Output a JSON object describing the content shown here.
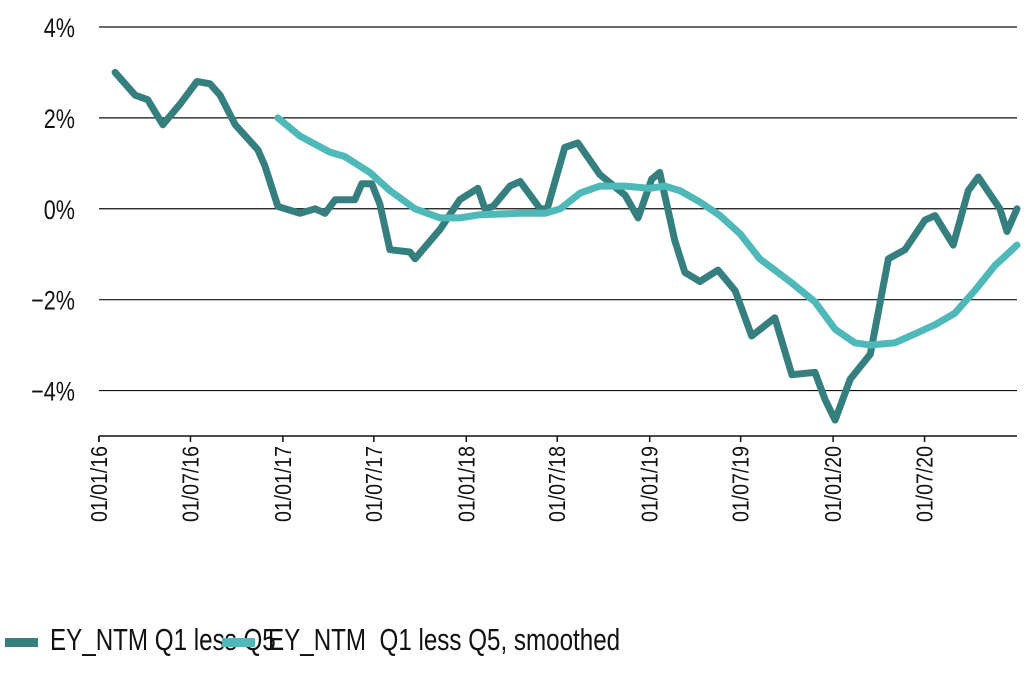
{
  "chart_data": {
    "type": "line",
    "title": "",
    "xlabel": "",
    "ylabel": "",
    "xlim": [
      "2016-01-01",
      "2021-01-01"
    ],
    "ylim": [
      -5,
      4
    ],
    "y_ticks": [
      4,
      2,
      0,
      -2,
      -4
    ],
    "y_tick_labels": [
      "4%",
      "2%",
      "0%",
      "−2%",
      "−4%"
    ],
    "x_ticks": [
      "2016-01-01",
      "2016-07-01",
      "2017-01-01",
      "2017-07-01",
      "2018-01-01",
      "2018-07-01",
      "2019-01-01",
      "2019-07-01",
      "2020-01-01",
      "2020-07-01"
    ],
    "x_tick_labels": [
      "01/01/16",
      "01/07/16",
      "01/01/17",
      "01/07/17",
      "01/01/18",
      "01/07/18",
      "01/01/19",
      "01/07/19",
      "01/01/20",
      "01/07/20"
    ],
    "grid": "horizontal",
    "legend_position": "bottom",
    "series": [
      {
        "name": "EY_NTM Q1 less Q5",
        "color": "#35807f",
        "points": [
          [
            "2016-02-02",
            3.0
          ],
          [
            "2016-03-13",
            2.5
          ],
          [
            "2016-04-07",
            2.4
          ],
          [
            "2016-05-07",
            1.85
          ],
          [
            "2016-06-10",
            2.3
          ],
          [
            "2016-07-14",
            2.8
          ],
          [
            "2016-08-09",
            2.75
          ],
          [
            "2016-08-29",
            2.5
          ],
          [
            "2016-09-28",
            1.85
          ],
          [
            "2016-11-12",
            1.3
          ],
          [
            "2016-11-26",
            0.95
          ],
          [
            "2016-12-22",
            0.05
          ],
          [
            "2017-02-04",
            -0.1
          ],
          [
            "2017-03-06",
            0.0
          ],
          [
            "2017-03-26",
            -0.1
          ],
          [
            "2017-04-15",
            0.2
          ],
          [
            "2017-05-24",
            0.2
          ],
          [
            "2017-06-07",
            0.55
          ],
          [
            "2017-06-27",
            0.55
          ],
          [
            "2017-07-13",
            0.1
          ],
          [
            "2017-08-02",
            -0.9
          ],
          [
            "2017-09-11",
            -0.95
          ],
          [
            "2017-09-21",
            -1.1
          ],
          [
            "2017-11-10",
            -0.45
          ],
          [
            "2017-12-19",
            0.2
          ],
          [
            "2018-01-24",
            0.45
          ],
          [
            "2018-02-07",
            0.0
          ],
          [
            "2018-02-23",
            0.05
          ],
          [
            "2018-03-29",
            0.5
          ],
          [
            "2018-04-18",
            0.6
          ],
          [
            "2018-05-28",
            0.0
          ],
          [
            "2018-06-11",
            0.0
          ],
          [
            "2018-07-16",
            1.35
          ],
          [
            "2018-08-11",
            1.45
          ],
          [
            "2018-09-24",
            0.75
          ],
          [
            "2018-11-13",
            0.3
          ],
          [
            "2018-12-09",
            -0.2
          ],
          [
            "2019-01-05",
            0.65
          ],
          [
            "2019-01-21",
            0.8
          ],
          [
            "2019-02-20",
            -0.7
          ],
          [
            "2019-03-12",
            -1.4
          ],
          [
            "2019-04-11",
            -1.6
          ],
          [
            "2019-05-17",
            -1.35
          ],
          [
            "2019-06-20",
            -1.8
          ],
          [
            "2019-07-23",
            -2.8
          ],
          [
            "2019-09-07",
            -2.4
          ],
          [
            "2019-10-11",
            -3.65
          ],
          [
            "2019-11-26",
            -3.6
          ],
          [
            "2019-12-16",
            -4.2
          ],
          [
            "2020-01-05",
            -4.65
          ],
          [
            "2020-02-04",
            -3.75
          ],
          [
            "2020-03-15",
            -3.2
          ],
          [
            "2020-04-20",
            -1.1
          ],
          [
            "2020-05-23",
            -0.9
          ],
          [
            "2020-07-02",
            -0.25
          ],
          [
            "2020-07-22",
            -0.15
          ],
          [
            "2020-08-27",
            -0.8
          ],
          [
            "2020-09-26",
            0.4
          ],
          [
            "2020-10-16",
            0.7
          ],
          [
            "2020-11-28",
            0.0
          ],
          [
            "2020-12-12",
            -0.5
          ],
          [
            "2021-01-01",
            0.0
          ]
        ]
      },
      {
        "name": "EY_NTM  Q1 less Q5, smoothed",
        "color": "#4fb8b8",
        "points": [
          [
            "2016-12-22",
            2.0
          ],
          [
            "2017-02-04",
            1.6
          ],
          [
            "2017-04-04",
            1.25
          ],
          [
            "2017-05-04",
            1.15
          ],
          [
            "2017-06-23",
            0.8
          ],
          [
            "2017-08-02",
            0.4
          ],
          [
            "2017-09-21",
            0.0
          ],
          [
            "2017-11-10",
            -0.2
          ],
          [
            "2017-12-19",
            -0.2
          ],
          [
            "2018-01-28",
            -0.13
          ],
          [
            "2018-04-18",
            -0.1
          ],
          [
            "2018-06-07",
            -0.1
          ],
          [
            "2018-07-07",
            0.0
          ],
          [
            "2018-08-16",
            0.35
          ],
          [
            "2018-09-24",
            0.5
          ],
          [
            "2018-11-13",
            0.5
          ],
          [
            "2019-01-01",
            0.45
          ],
          [
            "2019-01-31",
            0.5
          ],
          [
            "2019-03-02",
            0.4
          ],
          [
            "2019-04-11",
            0.15
          ],
          [
            "2019-05-21",
            -0.15
          ],
          [
            "2019-06-30",
            -0.55
          ],
          [
            "2019-08-08",
            -1.1
          ],
          [
            "2019-10-07",
            -1.6
          ],
          [
            "2019-11-26",
            -2.05
          ],
          [
            "2020-01-05",
            -2.65
          ],
          [
            "2020-02-13",
            -2.95
          ],
          [
            "2020-03-14",
            -3.0
          ],
          [
            "2020-05-03",
            -2.95
          ],
          [
            "2020-06-12",
            -2.75
          ],
          [
            "2020-07-22",
            -2.55
          ],
          [
            "2020-08-30",
            -2.3
          ],
          [
            "2020-10-09",
            -1.8
          ],
          [
            "2020-11-18",
            -1.25
          ],
          [
            "2021-01-01",
            -0.8
          ]
        ]
      }
    ]
  },
  "legend": {
    "items": [
      {
        "label": "EY_NTM Q1 less Q5",
        "color": "#35807f"
      },
      {
        "label": "EY_NTM  Q1 less Q5, smoothed",
        "color": "#4fb8b8"
      }
    ]
  }
}
